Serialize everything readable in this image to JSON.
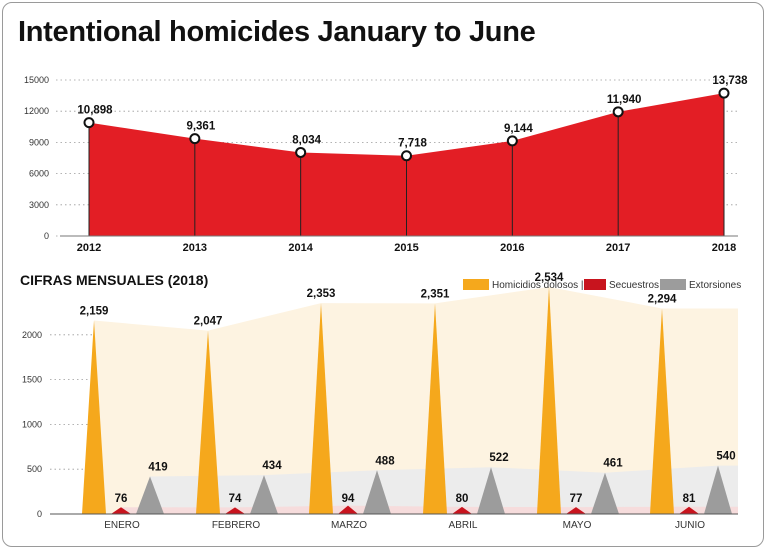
{
  "colors": {
    "homicidios": "#f5a81c",
    "secuestros": "#c8141e",
    "extorsiones": "#9c9c9c",
    "annual_area": "#e31e25",
    "band_homicidios": "#fdf3e1",
    "band_extorsiones": "#ececec",
    "band_secuestros": "#f6dcdc"
  },
  "chart_data": [
    {
      "type": "area",
      "title": "Intentional homicides January to June",
      "categories": [
        "2012",
        "2013",
        "2014",
        "2015",
        "2016",
        "2017",
        "2018"
      ],
      "values": [
        10898,
        9361,
        8034,
        7718,
        9144,
        11940,
        13738
      ],
      "value_labels": [
        "10,898",
        "9,361",
        "8,034",
        "7,718",
        "9,144",
        "11,940",
        "13,738"
      ],
      "yticks": [
        "0",
        "3000",
        "6000",
        "9000",
        "12000",
        "15000"
      ],
      "ylim": [
        0,
        15000
      ],
      "xlabel": "",
      "ylabel": ""
    },
    {
      "type": "bar",
      "title": "CIFRAS MENSUALES (2018)",
      "categories": [
        "ENERO",
        "FEBRERO",
        "MARZO",
        "ABRIL",
        "MAYO",
        "JUNIO"
      ],
      "series": [
        {
          "name": "Homicidios dolosos |",
          "color_key": "homicidios",
          "values": [
            2159,
            2047,
            2353,
            2351,
            2534,
            2294
          ],
          "labels": [
            "2,159",
            "2,047",
            "2,353",
            "2,351",
            "2,534",
            "2,294"
          ]
        },
        {
          "name": "Secuestros |",
          "color_key": "secuestros",
          "values": [
            76,
            74,
            94,
            80,
            77,
            81
          ],
          "labels": [
            "76",
            "74",
            "94",
            "80",
            "77",
            "81"
          ]
        },
        {
          "name": "Extorsiones",
          "color_key": "extorsiones",
          "values": [
            419,
            434,
            488,
            522,
            461,
            540
          ],
          "labels": [
            "419",
            "434",
            "488",
            "522",
            "461",
            "540"
          ]
        }
      ],
      "yticks": [
        "0",
        "500",
        "1000",
        "1500",
        "2000"
      ],
      "ylim": [
        0,
        2500
      ],
      "legend": "top-right",
      "xlabel": "",
      "ylabel": ""
    }
  ]
}
